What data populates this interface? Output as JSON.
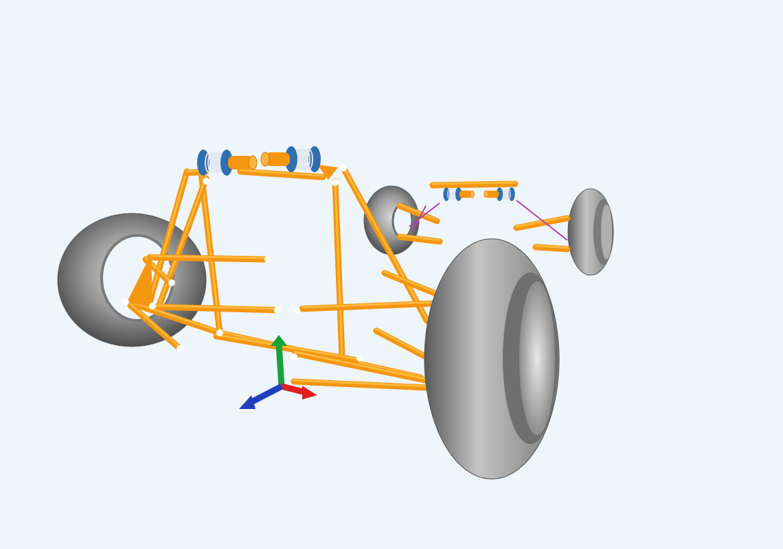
{
  "viewport": {
    "background": "#eef5fb"
  },
  "model": {
    "frame_tube_color": "#f5960f",
    "frame_tube_highlight": "#ffc24a",
    "joint_color": "#ffffff",
    "tire_color": "#8a8a8a",
    "spring_color": "#dfe6ee",
    "spring_mount_color": "#2f6fb0",
    "link_color": "#b040b0",
    "wheel_count": 4,
    "damper_count": 4
  },
  "axis_triad": {
    "x_color": "#e02020",
    "y_color": "#18a23a",
    "z_color": "#1f3fbf"
  }
}
